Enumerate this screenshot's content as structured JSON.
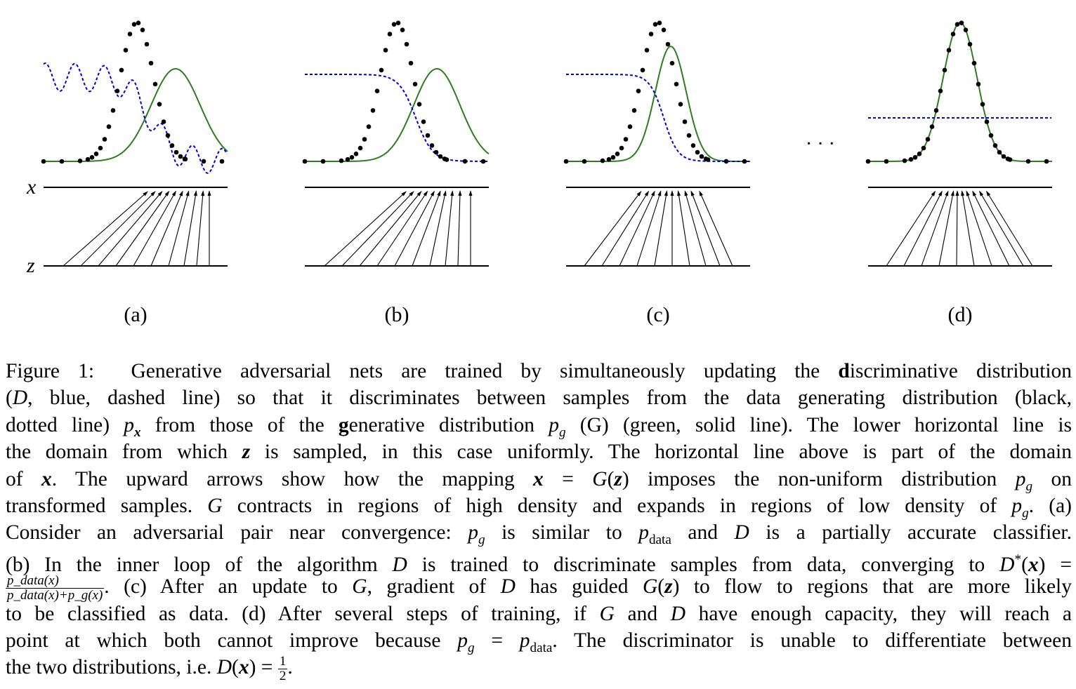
{
  "figure": {
    "panels": [
      {
        "label": "(a)"
      },
      {
        "label": "(b)"
      },
      {
        "label": "(c)"
      },
      {
        "label": "(d)"
      }
    ],
    "axis_x_label": "x",
    "axis_z_label": "z",
    "ellipsis": "· · ·",
    "colors": {
      "data": "#000000",
      "discriminator": "#0000dd",
      "generator": "#2e7d1f",
      "axes": "#000000"
    }
  },
  "caption": {
    "figure_label": "Figure 1:",
    "line1_a": "Generative adversarial nets are trained by simultaneously updating the ",
    "line1_bold": "d",
    "line1_b": "iscriminative distribution",
    "line2_a": "(",
    "line2_D": "D",
    "line2_b": ", blue, dashed line) so that it discriminates between samples from the data generating distribution (black,",
    "line3_a": "dotted line) ",
    "line3_px": "p",
    "line3_px_sub": "x",
    "line3_b": " from those of the ",
    "line3_bold": "g",
    "line3_c": "enerative distribution ",
    "line3_pg": "p",
    "line3_pg_sub": "g",
    "line3_d": " (G) (green, solid line). The lower horizontal line is",
    "line4_a": "the domain from which ",
    "line4_z": "z",
    "line4_b": " is sampled, in this case uniformly. The horizontal line above is part of the domain",
    "line5_a": "of ",
    "line5_x": "x",
    "line5_b": ".  The upward arrows show how the mapping ",
    "line5_eq": "x",
    "line5_c": " = ",
    "line5_G": "G",
    "line5_d": "(",
    "line5_z": "z",
    "line5_e": ") imposes the non-uniform distribution ",
    "line5_pg": "p",
    "line5_pg_sub": "g",
    "line5_f": " on",
    "line6_a": "transformed samples. ",
    "line6_G": "G",
    "line6_b": " contracts in regions of high density and expands in regions of low density of ",
    "line6_pg": "p",
    "line6_pg_sub": "g",
    "line6_c": ". (a)",
    "line7_a": "Consider an adversarial pair near convergence: ",
    "line7_pg": "p",
    "line7_pg_sub": "g",
    "line7_b": " is similar to ",
    "line7_pdata": "p",
    "line7_pdata_sub": "data",
    "line7_c": " and ",
    "line7_D": "D",
    "line7_d": " is a partially accurate classifier.",
    "line8_a": "(b) In the inner loop of the algorithm ",
    "line8_D": "D",
    "line8_b": " is trained to discriminate samples from data, converging to ",
    "line8_Dstar": "D",
    "line8_star": "*",
    "line8_c": "(",
    "line8_x": "x",
    "line8_d": ") =",
    "line9_frac_num": "p_data(x)",
    "line9_frac_den": "p_data(x)+p_g(x)",
    "line9_a": ". (c) After an update to ",
    "line9_G": "G",
    "line9_b": ", gradient of ",
    "line9_D": "D",
    "line9_c": " has guided ",
    "line9_G2": "G",
    "line9_d": "(",
    "line9_z": "z",
    "line9_e": ") to flow to regions that are more likely",
    "line10_a": "to be classified as data. (d) After several steps of training, if ",
    "line10_G": "G",
    "line10_b": " and ",
    "line10_D": "D",
    "line10_c": " have enough capacity, they will reach a",
    "line11_a": "point at which both cannot improve because ",
    "line11_pg": "p",
    "line11_pg_sub": "g",
    "line11_b": " = ",
    "line11_pdata": "p",
    "line11_pdata_sub": "data",
    "line11_c": ". The discriminator is unable to differentiate between",
    "line12_a": "the two distributions, i.e. ",
    "line12_D": "D",
    "line12_b": "(",
    "line12_x": "x",
    "line12_c": ") = ",
    "line12_num": "1",
    "line12_den": "2",
    "line12_d": "."
  }
}
